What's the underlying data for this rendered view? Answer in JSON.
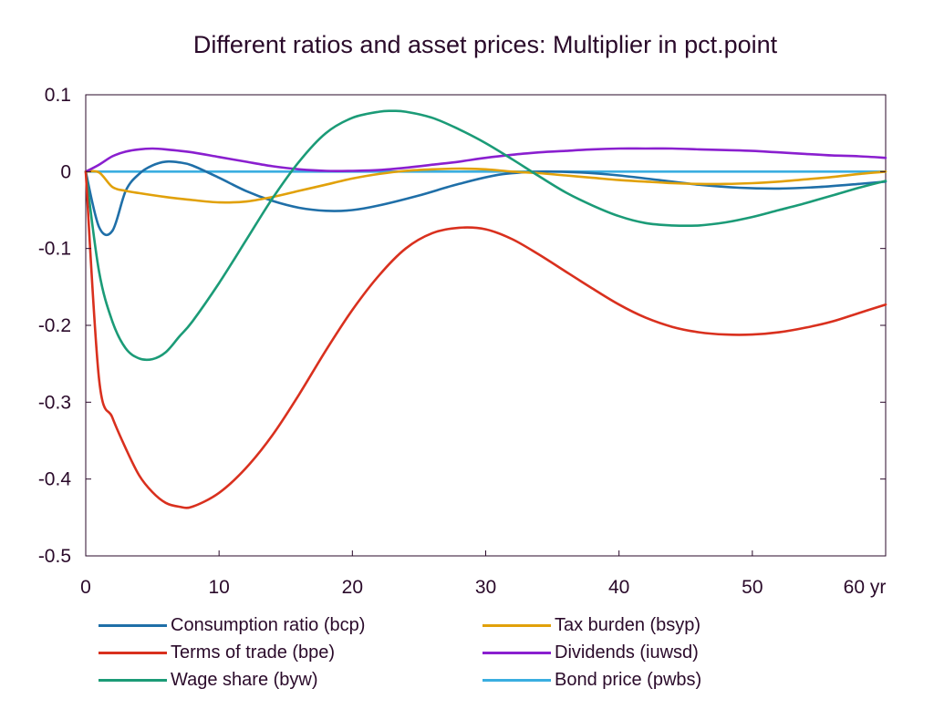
{
  "chart_data": {
    "type": "line",
    "title": "Different ratios and asset prices: Multiplier in pct.point",
    "xlim": [
      0,
      60
    ],
    "ylim": [
      -0.5,
      0.1
    ],
    "x_ticks": [
      0,
      10,
      20,
      30,
      40,
      50,
      60
    ],
    "x_tick_labels": [
      "0",
      "10",
      "20",
      "30",
      "40",
      "50",
      "60 yr"
    ],
    "y_ticks": [
      0.1,
      0,
      -0.1,
      -0.2,
      -0.3,
      -0.4,
      -0.5
    ],
    "y_tick_labels": [
      "0.1",
      "0",
      "-0.1",
      "-0.2",
      "-0.3",
      "-0.4",
      "-0.5"
    ],
    "grid": false,
    "legend_position": "bottom",
    "series": [
      {
        "name": "Consumption ratio (bcp)",
        "color": "#1f6fa8",
        "x": [
          0,
          1,
          2,
          3,
          4,
          5,
          6,
          7,
          8,
          10,
          12,
          14,
          16,
          18,
          20,
          22,
          25,
          28,
          31,
          34,
          37,
          40,
          43,
          46,
          49,
          52,
          55,
          58,
          60
        ],
        "y": [
          0,
          -0.072,
          -0.077,
          -0.025,
          -0.003,
          0.008,
          0.013,
          0.012,
          0.008,
          -0.008,
          -0.025,
          -0.038,
          -0.047,
          -0.051,
          -0.05,
          -0.044,
          -0.031,
          -0.016,
          -0.004,
          0.0,
          -0.001,
          -0.005,
          -0.011,
          -0.017,
          -0.021,
          -0.022,
          -0.02,
          -0.016,
          -0.013
        ]
      },
      {
        "name": "Terms of trade (bpe)",
        "color": "#d9301e",
        "x": [
          0,
          1,
          2,
          3,
          4,
          5,
          6,
          7,
          8,
          10,
          12,
          14,
          16,
          18,
          20,
          22,
          24,
          26,
          28,
          30,
          32,
          34,
          36,
          38,
          40,
          42,
          44,
          46,
          48,
          50,
          52,
          54,
          56,
          58,
          60
        ],
        "y": [
          0,
          -0.27,
          -0.32,
          -0.36,
          -0.395,
          -0.417,
          -0.431,
          -0.436,
          -0.436,
          -0.418,
          -0.386,
          -0.343,
          -0.29,
          -0.233,
          -0.18,
          -0.135,
          -0.1,
          -0.08,
          -0.073,
          -0.075,
          -0.088,
          -0.108,
          -0.13,
          -0.152,
          -0.173,
          -0.19,
          -0.202,
          -0.209,
          -0.212,
          -0.212,
          -0.209,
          -0.203,
          -0.195,
          -0.184,
          -0.173
        ]
      },
      {
        "name": "Wage share (byw)",
        "color": "#1b9b77",
        "x": [
          0,
          1,
          2,
          3,
          4,
          5,
          6,
          7,
          8,
          10,
          12,
          14,
          16,
          18,
          20,
          22,
          23,
          24,
          26,
          28,
          30,
          32,
          34,
          36,
          38,
          40,
          42,
          44,
          46,
          48,
          50,
          52,
          54,
          56,
          58,
          60
        ],
        "y": [
          0,
          -0.13,
          -0.195,
          -0.23,
          -0.243,
          -0.244,
          -0.235,
          -0.215,
          -0.195,
          -0.145,
          -0.09,
          -0.035,
          0.013,
          0.05,
          0.07,
          0.078,
          0.079,
          0.078,
          0.07,
          0.055,
          0.037,
          0.016,
          -0.006,
          -0.027,
          -0.044,
          -0.058,
          -0.067,
          -0.07,
          -0.07,
          -0.066,
          -0.059,
          -0.05,
          -0.041,
          -0.031,
          -0.021,
          -0.012
        ]
      },
      {
        "name": "Tax burden (bsyp)",
        "color": "#e1a10a",
        "x": [
          0,
          1,
          2,
          3,
          4,
          6,
          8,
          10,
          12,
          14,
          16,
          18,
          20,
          22,
          24,
          26,
          28,
          30,
          32,
          34,
          36,
          38,
          40,
          42,
          44,
          46,
          48,
          50,
          52,
          54,
          56,
          58,
          60
        ],
        "y": [
          0,
          -0.001,
          -0.02,
          -0.025,
          -0.028,
          -0.033,
          -0.037,
          -0.04,
          -0.039,
          -0.033,
          -0.025,
          -0.017,
          -0.009,
          -0.003,
          0.001,
          0.003,
          0.004,
          0.003,
          0.0,
          -0.002,
          -0.005,
          -0.008,
          -0.011,
          -0.013,
          -0.015,
          -0.016,
          -0.016,
          -0.015,
          -0.013,
          -0.01,
          -0.007,
          -0.003,
          0.0
        ]
      },
      {
        "name": "Dividends (iuwsd)",
        "color": "#8a1fcf",
        "x": [
          0,
          1,
          2,
          3,
          4,
          5,
          6,
          8,
          10,
          12,
          14,
          16,
          18,
          20,
          22,
          24,
          26,
          28,
          30,
          32,
          34,
          36,
          38,
          40,
          42,
          44,
          46,
          48,
          50,
          52,
          54,
          56,
          58,
          60
        ],
        "y": [
          0,
          0.009,
          0.02,
          0.026,
          0.029,
          0.03,
          0.029,
          0.025,
          0.019,
          0.013,
          0.007,
          0.003,
          0.001,
          0.001,
          0.002,
          0.005,
          0.009,
          0.013,
          0.018,
          0.022,
          0.025,
          0.027,
          0.029,
          0.03,
          0.03,
          0.03,
          0.029,
          0.028,
          0.027,
          0.025,
          0.023,
          0.021,
          0.02,
          0.018
        ]
      },
      {
        "name": "Bond price (pwbs)",
        "color": "#3aaee0",
        "x": [
          0,
          60
        ],
        "y": [
          0,
          0
        ]
      }
    ]
  }
}
